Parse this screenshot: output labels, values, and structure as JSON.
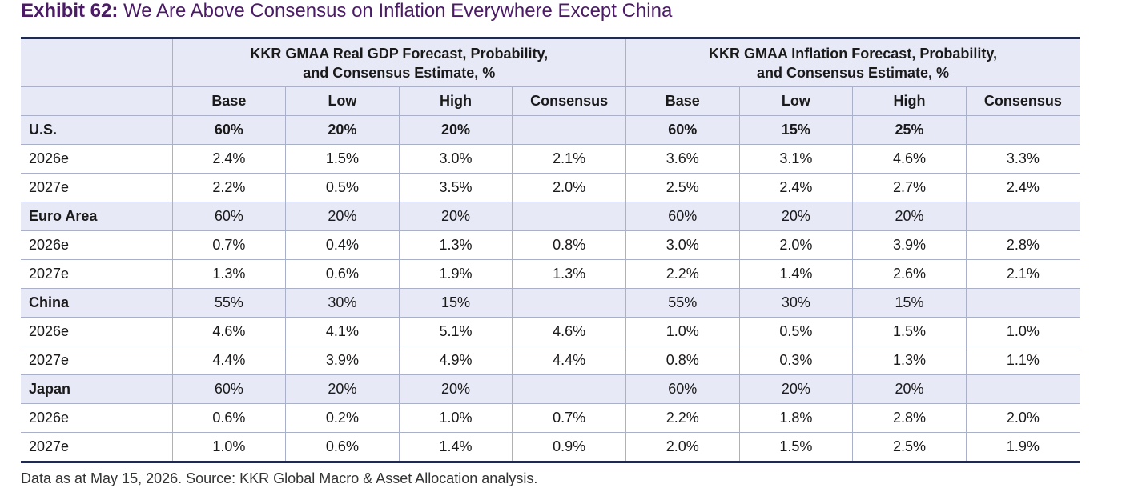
{
  "title": {
    "lead": "Exhibit 62:",
    "rest": " We Are Above Consensus on Inflation Everywhere Except China"
  },
  "table": {
    "group_headers": [
      {
        "line1": "KKR GMAA Real GDP Forecast, Probability,",
        "line2": "and Consensus Estimate, %"
      },
      {
        "line1": "KKR GMAA Inflation Forecast, Probability,",
        "line2": "and Consensus Estimate, %"
      }
    ],
    "sub_headers": [
      "Base",
      "Low",
      "High",
      "Consensus",
      "Base",
      "Low",
      "High",
      "Consensus"
    ],
    "rows": [
      {
        "label": "U.S.",
        "cells": [
          "60%",
          "20%",
          "20%",
          "",
          "60%",
          "15%",
          "25%",
          ""
        ]
      },
      {
        "label": "2026e",
        "cells": [
          "2.4%",
          "1.5%",
          "3.0%",
          "2.1%",
          "3.6%",
          "3.1%",
          "4.6%",
          "3.3%"
        ]
      },
      {
        "label": "2027e",
        "cells": [
          "2.2%",
          "0.5%",
          "3.5%",
          "2.0%",
          "2.5%",
          "2.4%",
          "2.7%",
          "2.4%"
        ]
      },
      {
        "label": "Euro Area",
        "cells": [
          "60%",
          "20%",
          "20%",
          "",
          "60%",
          "20%",
          "20%",
          ""
        ]
      },
      {
        "label": "2026e",
        "cells": [
          "0.7%",
          "0.4%",
          "1.3%",
          "0.8%",
          "3.0%",
          "2.0%",
          "3.9%",
          "2.8%"
        ]
      },
      {
        "label": "2027e",
        "cells": [
          "1.3%",
          "0.6%",
          "1.9%",
          "1.3%",
          "2.2%",
          "1.4%",
          "2.6%",
          "2.1%"
        ]
      },
      {
        "label": "China",
        "cells": [
          "55%",
          "30%",
          "15%",
          "",
          "55%",
          "30%",
          "15%",
          ""
        ]
      },
      {
        "label": "2026e",
        "cells": [
          "4.6%",
          "4.1%",
          "5.1%",
          "4.6%",
          "1.0%",
          "0.5%",
          "1.5%",
          "1.0%"
        ]
      },
      {
        "label": "2027e",
        "cells": [
          "4.4%",
          "3.9%",
          "4.9%",
          "4.4%",
          "0.8%",
          "0.3%",
          "1.3%",
          "1.1%"
        ]
      },
      {
        "label": "Japan",
        "cells": [
          "60%",
          "20%",
          "20%",
          "",
          "60%",
          "20%",
          "20%",
          ""
        ]
      },
      {
        "label": "2026e",
        "cells": [
          "0.6%",
          "0.2%",
          "1.0%",
          "0.7%",
          "2.2%",
          "1.8%",
          "2.8%",
          "2.0%"
        ]
      },
      {
        "label": "2027e",
        "cells": [
          "1.0%",
          "0.6%",
          "1.4%",
          "0.9%",
          "2.0%",
          "1.5%",
          "2.5%",
          "1.9%"
        ]
      }
    ]
  },
  "footnote": "Data as at May 15, 2026. Source: KKR Global Macro & Asset Allocation analysis.",
  "colors": {
    "title": "#4b1b66",
    "header_fill": "#e7e9f6",
    "rule": "#1f2a4d",
    "grid": "#a9b0c8"
  }
}
